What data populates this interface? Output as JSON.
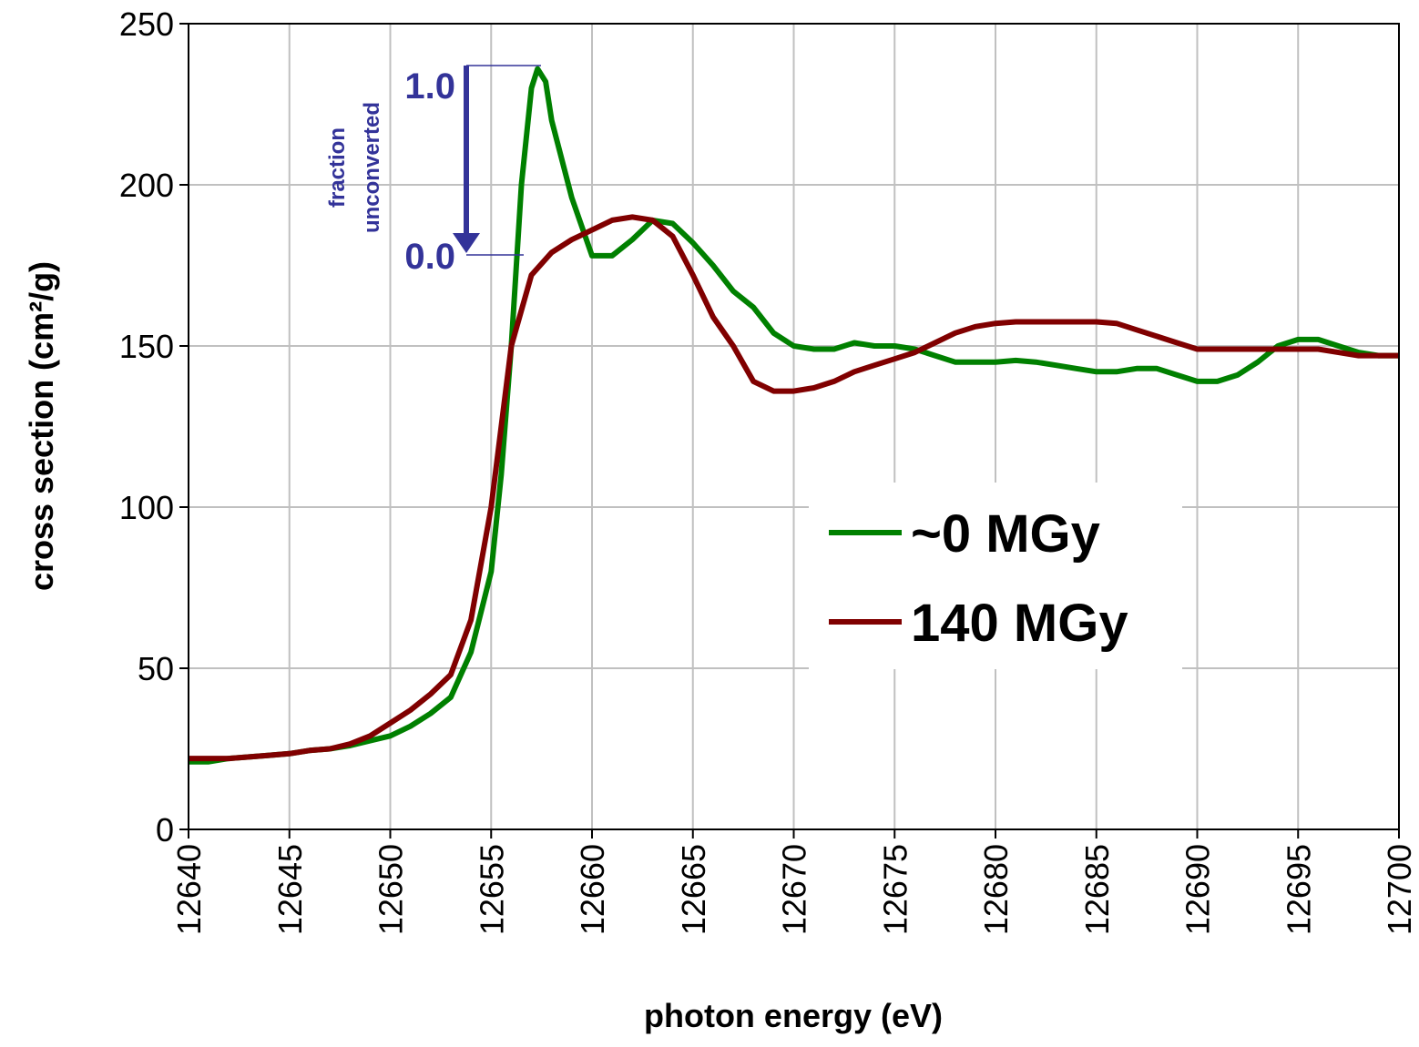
{
  "chart_data": {
    "type": "line",
    "x_label": "photon energy (eV)",
    "y_label": "cross section (cm²/g)",
    "xlim": [
      12640,
      12700
    ],
    "xticks": [
      12640,
      12645,
      12650,
      12655,
      12660,
      12665,
      12670,
      12675,
      12680,
      12685,
      12690,
      12695,
      12700
    ],
    "ylim": [
      0,
      250
    ],
    "yticks": [
      0,
      50,
      100,
      150,
      200,
      250
    ],
    "grid": true,
    "legend": "right",
    "annotations": {
      "top": "1.0",
      "bottom": "0.0",
      "line1": "fraction",
      "line2": "unconverted"
    },
    "series": [
      {
        "name": "~0 MGy",
        "color": "#008000",
        "x": [
          12640,
          12641,
          12642,
          12643,
          12644,
          12645,
          12646,
          12647,
          12648,
          12649,
          12650,
          12651,
          12652,
          12653,
          12654,
          12655,
          12655.5,
          12656,
          12656.5,
          12657,
          12657.3,
          12657.7,
          12658,
          12659,
          12660,
          12661,
          12662,
          12663,
          12664,
          12665,
          12666,
          12667,
          12668,
          12669,
          12670,
          12671,
          12672,
          12673,
          12674,
          12675,
          12676,
          12677,
          12678,
          12679,
          12680,
          12681,
          12682,
          12683,
          12684,
          12685,
          12686,
          12687,
          12688,
          12689,
          12690,
          12691,
          12692,
          12693,
          12694,
          12695,
          12696,
          12697,
          12698,
          12699,
          12700
        ],
        "values": [
          21,
          21,
          22,
          22.5,
          23,
          23.5,
          24.5,
          25,
          26,
          27.5,
          29,
          32,
          36,
          41,
          55,
          80,
          110,
          150,
          200,
          230,
          236,
          232,
          220,
          196,
          178,
          178,
          183,
          189,
          188,
          182,
          175,
          167,
          162,
          154,
          150,
          149,
          149,
          151,
          150,
          150,
          149,
          147,
          145,
          145,
          145,
          145.5,
          145,
          144,
          143,
          142,
          142,
          143,
          143,
          141,
          139,
          139,
          141,
          145,
          150,
          152,
          152,
          150,
          148,
          147,
          147
        ]
      },
      {
        "name": "140 MGy",
        "color": "#800000",
        "x": [
          12640,
          12641,
          12642,
          12643,
          12644,
          12645,
          12646,
          12647,
          12648,
          12649,
          12650,
          12651,
          12652,
          12653,
          12654,
          12655,
          12656,
          12657,
          12658,
          12659,
          12660,
          12661,
          12662,
          12663,
          12664,
          12665,
          12666,
          12667,
          12668,
          12669,
          12670,
          12671,
          12672,
          12673,
          12674,
          12675,
          12676,
          12677,
          12678,
          12679,
          12680,
          12681,
          12682,
          12683,
          12684,
          12685,
          12686,
          12687,
          12688,
          12689,
          12690,
          12691,
          12692,
          12693,
          12694,
          12695,
          12696,
          12697,
          12698,
          12699,
          12700
        ],
        "values": [
          22,
          22,
          22,
          22.5,
          23,
          23.5,
          24.5,
          25,
          26.5,
          29,
          33,
          37,
          42,
          48,
          65,
          100,
          150,
          172,
          179,
          183,
          186,
          189,
          190,
          189,
          184,
          172,
          159,
          150,
          139,
          136,
          136,
          137,
          139,
          142,
          144,
          146,
          148,
          151,
          154,
          156,
          157,
          157.5,
          157.5,
          157.5,
          157.5,
          157.5,
          157,
          155,
          153,
          151,
          149,
          149,
          149,
          149,
          149,
          149,
          149,
          148,
          147,
          147,
          147
        ]
      }
    ]
  }
}
